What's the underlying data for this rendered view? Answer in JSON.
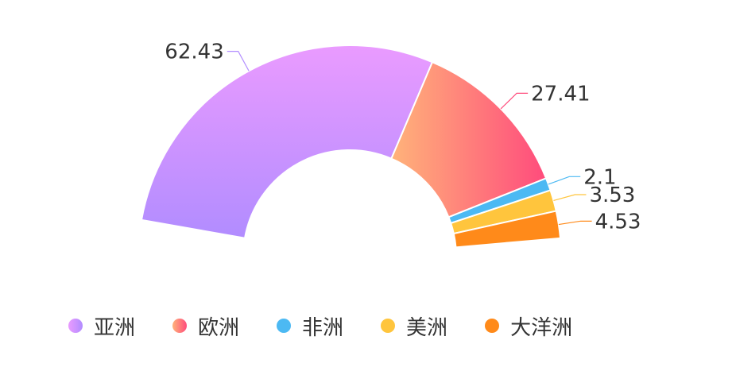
{
  "chart_data": {
    "type": "pie",
    "variant": "half-donut",
    "start_angle_deg": 190,
    "end_angle_deg": 355,
    "slices": [
      {
        "name": "亚洲",
        "value": 62.43,
        "label": "62.43",
        "color_start": "#EA9BFF",
        "color_end": "#B18CFF"
      },
      {
        "name": "欧洲",
        "value": 27.41,
        "label": "27.41",
        "color_start": "#FFB37A",
        "color_end": "#FF4B7C"
      },
      {
        "name": "非洲",
        "value": 2.1,
        "label": "2.1",
        "color_start": "#4CB9F3",
        "color_end": "#4CB9F3"
      },
      {
        "name": "美洲",
        "value": 3.53,
        "label": "3.53",
        "color_start": "#FFC53D",
        "color_end": "#FFC53D"
      },
      {
        "name": "大洋洲",
        "value": 4.53,
        "label": "4.53",
        "color_start": "#FF8A1A",
        "color_end": "#FF8A1A"
      }
    ],
    "legend_position": "bottom"
  }
}
